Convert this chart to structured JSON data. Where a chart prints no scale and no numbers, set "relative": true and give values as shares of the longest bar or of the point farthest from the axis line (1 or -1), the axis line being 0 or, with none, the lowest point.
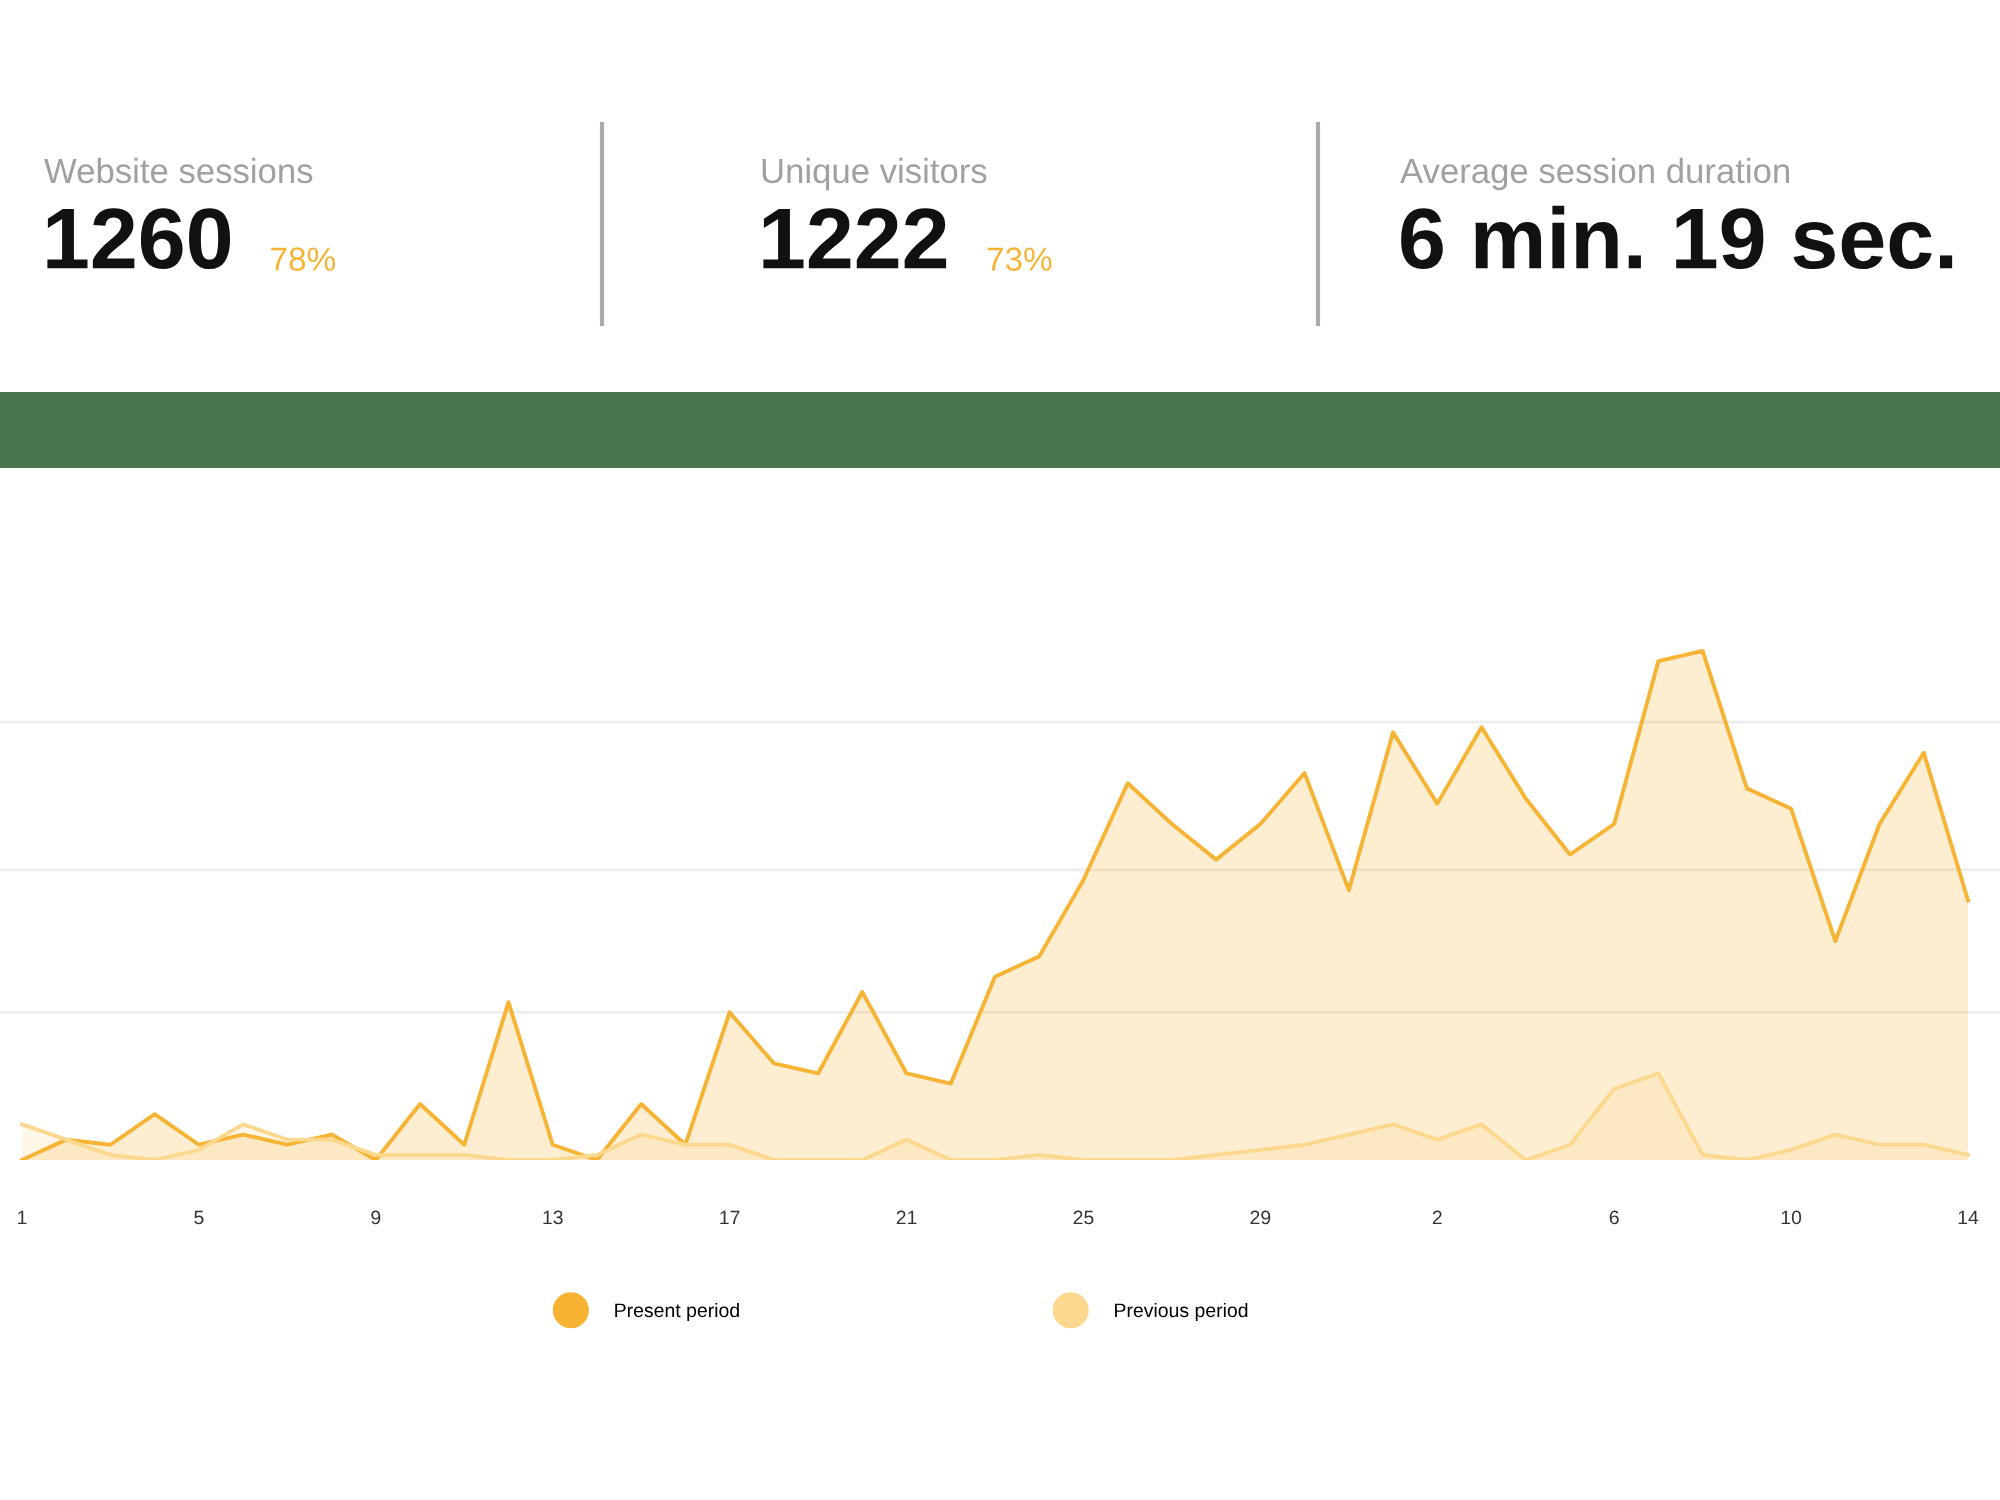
{
  "chart_data": [
    {
      "type": "other",
      "annotations": [
        "Website sessions",
        "1260",
        "78%",
        "Unique visitors",
        "1222",
        "73%",
        "Average session duration",
        "6 min. 19 sec."
      ]
    },
    {
      "type": "area",
      "relative": true,
      "grid": "y",
      "legend": "bottom",
      "categories": [
        "1",
        null,
        null,
        null,
        "5",
        null,
        null,
        null,
        "9",
        null,
        null,
        null,
        "13",
        null,
        null,
        null,
        "17",
        null,
        null,
        null,
        "21",
        null,
        null,
        null,
        "25",
        null,
        null,
        null,
        "29",
        null,
        null,
        null,
        "2",
        null,
        null,
        null,
        "6",
        null,
        null,
        null,
        "10",
        null,
        null,
        null,
        "14"
      ],
      "series": [
        {
          "name": "Present period",
          "color": "#f7b334",
          "values": [
            0,
            0.04,
            0.03,
            0.09,
            0.03,
            0.05,
            0.03,
            0.05,
            0,
            0.11,
            0.03,
            0.31,
            0.03,
            0,
            0.11,
            0.03,
            0.29,
            0.19,
            0.17,
            0.33,
            0.17,
            0.15,
            0.36,
            0.4,
            0.55,
            0.74,
            0.66,
            0.59,
            0.66,
            0.76,
            0.53,
            0.84,
            0.7,
            0.85,
            0.71,
            0.6,
            0.66,
            0.98,
            1,
            0.73,
            0.69,
            0.43,
            0.66,
            0.8,
            0.51
          ]
        },
        {
          "name": "Previous period",
          "color": "#fbd88e",
          "values": [
            0.07,
            0.04,
            0.01,
            0,
            0.02,
            0.07,
            0.04,
            0.04,
            0.01,
            0.01,
            0.01,
            0,
            0,
            0.01,
            0.05,
            0.03,
            0.03,
            0,
            0,
            0,
            0.04,
            0,
            0,
            0.01,
            0,
            0,
            0,
            0.01,
            0.02,
            0.03,
            0.05,
            0.07,
            0.04,
            0.07,
            0,
            0.03,
            0.14,
            0.17,
            0.01,
            0,
            0.02,
            0.05,
            0.03,
            0.03,
            0.01
          ]
        }
      ]
    }
  ]
}
